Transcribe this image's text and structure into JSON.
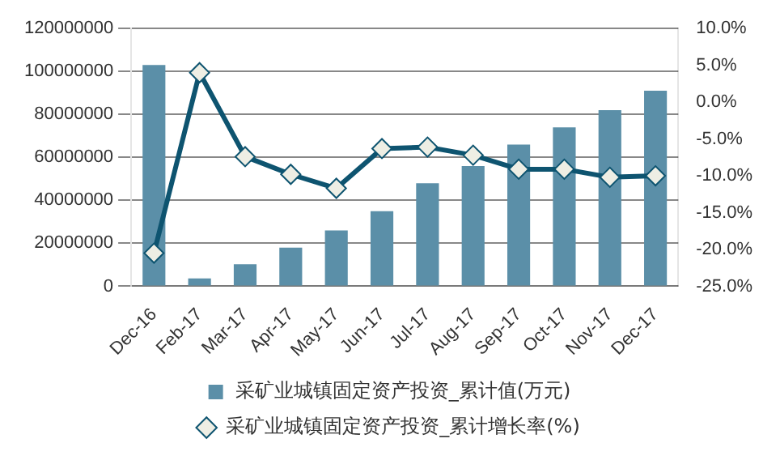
{
  "chart_data": {
    "type": "bar",
    "categories": [
      "Dec-16",
      "Feb-17",
      "Mar-17",
      "Apr-17",
      "May-17",
      "Jun-17",
      "Jul-17",
      "Aug-17",
      "Sep-17",
      "Oct-17",
      "Nov-17",
      "Dec-17"
    ],
    "series": [
      {
        "name": "采矿业城镇固定资产投资_累计值(万元)",
        "color": "#5b8fa8",
        "values": [
          103000000,
          3700000,
          10300000,
          18000000,
          26000000,
          35000000,
          48000000,
          56000000,
          66000000,
          74000000,
          82000000,
          91000000
        ]
      },
      {
        "name": "采矿业城镇固定资产投资_累计增长率(%)",
        "type": "line",
        "axis": "y2",
        "color": "#0e5470",
        "marker": "diamond",
        "values": [
          -20.5,
          4.0,
          -7.4,
          -9.8,
          -11.7,
          -6.3,
          -6.1,
          -7.2,
          -9.1,
          -9.1,
          -10.2,
          -10.0
        ]
      }
    ],
    "ylim": [
      0,
      120000000
    ],
    "yticks": [
      0,
      20000000,
      40000000,
      60000000,
      80000000,
      100000000,
      120000000
    ],
    "y2lim": [
      -25,
      10
    ],
    "y2ticks": [
      {
        "value": -25,
        "label": "-25.0%"
      },
      {
        "value": -20,
        "label": "-20.0%"
      },
      {
        "value": -15,
        "label": "-15.0%"
      },
      {
        "value": -10,
        "label": "-10.0%"
      },
      {
        "value": -5,
        "label": "-5.0%"
      },
      {
        "value": 0,
        "label": "0.0%"
      },
      {
        "value": 5,
        "label": "5.0%"
      },
      {
        "value": 10,
        "label": "10.0%"
      }
    ],
    "grid": "y",
    "legend": "bottom"
  }
}
